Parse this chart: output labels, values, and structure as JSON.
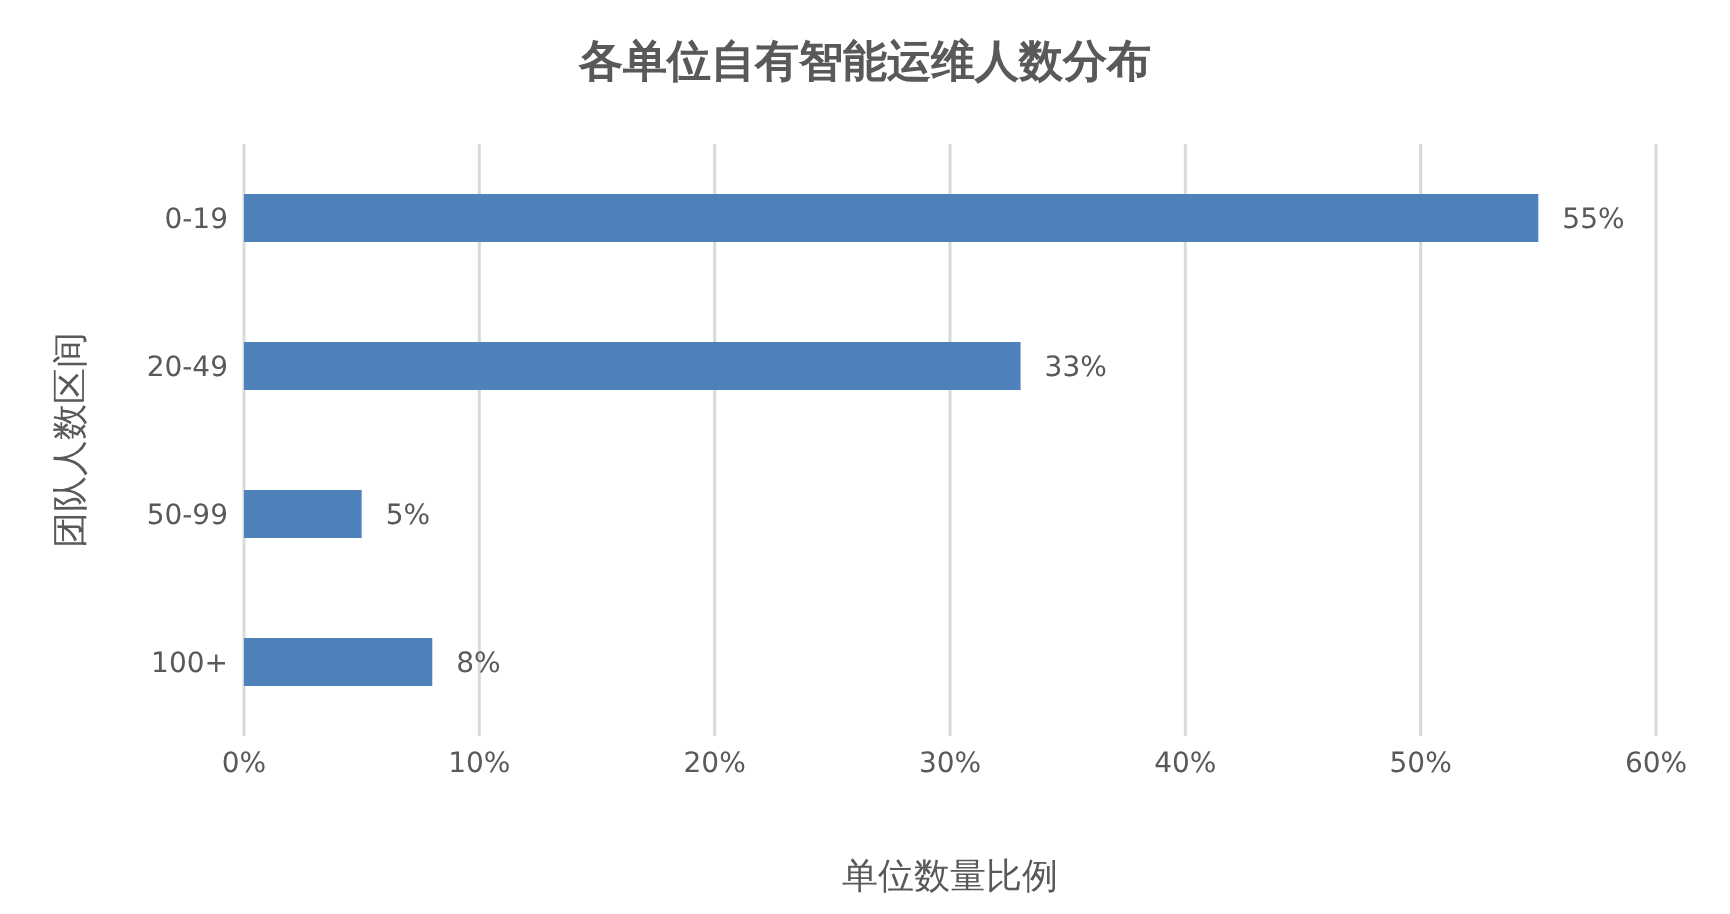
{
  "chart_data": {
    "type": "bar",
    "orientation": "horizontal",
    "title": "各单位自有智能运维人数分布",
    "xlabel": "单位数量比例",
    "ylabel": "团队人数区间",
    "categories": [
      "0-19",
      "20-49",
      "50-99",
      "100+"
    ],
    "values": [
      55,
      33,
      5,
      8
    ],
    "value_labels": [
      "55%",
      "33%",
      "5%",
      "8%"
    ],
    "color": "#4f81bd",
    "xlim": [
      0,
      60
    ],
    "xticks": [
      {
        "value": 0,
        "label": "0%"
      },
      {
        "value": 10,
        "label": "10%"
      },
      {
        "value": 20,
        "label": "20%"
      },
      {
        "value": 30,
        "label": "30%"
      },
      {
        "value": 40,
        "label": "40%"
      },
      {
        "value": 50,
        "label": "50%"
      },
      {
        "value": 60,
        "label": "60%"
      }
    ],
    "grid": "x",
    "legend": false
  }
}
